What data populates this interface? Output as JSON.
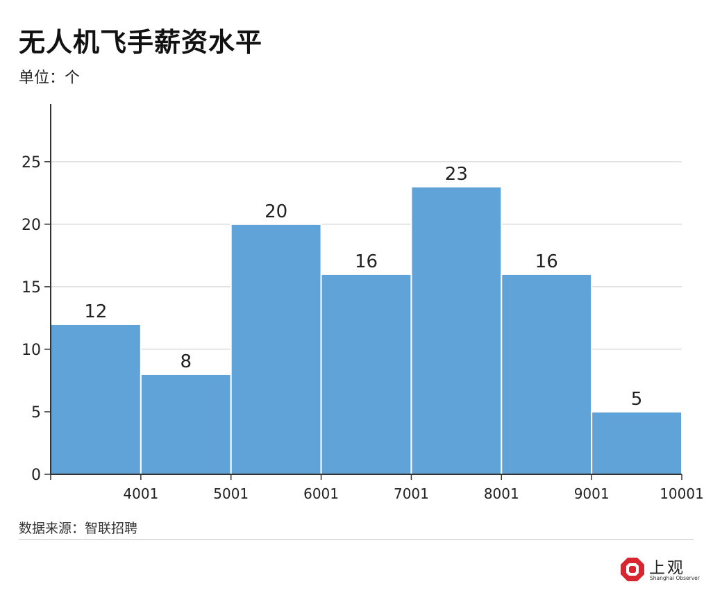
{
  "title": "无人机飞手薪资水平",
  "subtitle": "单位：个",
  "source": "数据来源：智联招聘",
  "logo": {
    "cn": "上观",
    "en": "Shanghai Observer"
  },
  "colors": {
    "bar": "#5fa3d8",
    "bar_edge": "#ffffff",
    "grid": "#dddddd",
    "axis": "#333333",
    "logo_red": "#d7262f"
  },
  "chart_data": {
    "type": "bar",
    "bin_edges": [
      "4001",
      "5001",
      "6001",
      "7001",
      "8001",
      "9001",
      "10001"
    ],
    "values": [
      12,
      8,
      20,
      16,
      23,
      16,
      5
    ],
    "value_labels": [
      "12",
      "8",
      "20",
      "16",
      "23",
      "16",
      "5"
    ],
    "y_ticks": [
      "0",
      "5",
      "10",
      "15",
      "20",
      "25"
    ],
    "ylim": [
      0,
      29.6
    ],
    "grid": true,
    "xlabel": "",
    "ylabel": ""
  }
}
